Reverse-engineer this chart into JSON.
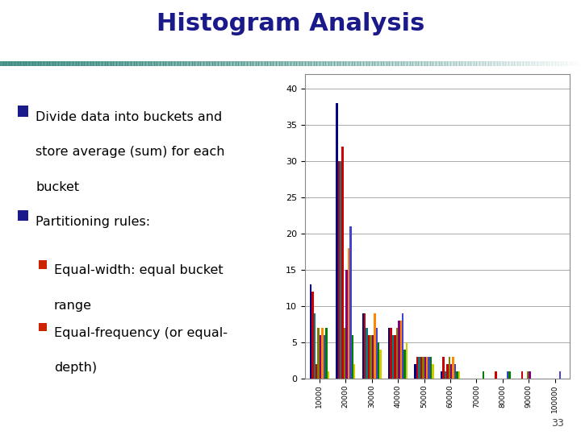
{
  "title": "Histogram Analysis",
  "title_color": "#1a1a8a",
  "title_fontsize": 22,
  "title_fontweight": "bold",
  "bg_color": "#ffffff",
  "slide_line_color": "#3a8a80",
  "text_color": "#000000",
  "bullet_color_main": "#1a1a8a",
  "bullet_color_sub": "#cc2200",
  "page_number": "33",
  "x_labels": [
    "1\n0\n0\n0\n0",
    "2\n0\n0\n0\n0",
    "3\n0\n0\n0\n0",
    "4\n0\n0\n0\n0",
    "5\n0\n0\n0\n0",
    "6\n0\n0\n0\n0",
    "7\n0\n0\n0\n0",
    "8\n0\n0\n0\n0",
    "9\n0\n0\n0\n0",
    "1\n0\n0\n0\n0\n0"
  ],
  "ylim": [
    0,
    42
  ],
  "yticks": [
    0,
    5,
    10,
    15,
    20,
    25,
    30,
    35,
    40
  ],
  "bar_colors": [
    "#000080",
    "#cc0000",
    "#008080",
    "#cc0000",
    "#808000",
    "#800080",
    "#ff8800",
    "#4444cc",
    "#008000",
    "#cccc00"
  ],
  "series_data": [
    [
      13,
      38,
      9,
      7,
      2,
      1,
      0,
      0,
      0,
      0
    ],
    [
      12,
      30,
      9,
      7,
      3,
      3,
      0,
      1,
      1,
      0
    ],
    [
      9,
      30,
      7,
      6,
      3,
      1,
      0,
      0,
      0,
      0
    ],
    [
      2,
      32,
      6,
      6,
      3,
      2,
      0,
      0,
      0,
      0
    ],
    [
      7,
      7,
      6,
      7,
      3,
      3,
      0,
      0,
      1,
      0
    ],
    [
      6,
      15,
      6,
      8,
      3,
      2,
      0,
      0,
      1,
      0
    ],
    [
      7,
      18,
      9,
      8,
      3,
      3,
      0,
      0,
      0,
      0
    ],
    [
      6,
      21,
      7,
      9,
      3,
      2,
      0,
      1,
      0,
      1
    ],
    [
      7,
      6,
      5,
      4,
      3,
      1,
      1,
      1,
      0,
      0
    ],
    [
      1,
      2,
      4,
      5,
      2,
      1,
      0,
      0,
      0,
      0
    ]
  ],
  "chart_bg": "#ffffff",
  "grid_color": "#aaaaaa",
  "text_lines": {
    "b1_line1": "Divide data into buckets and",
    "b1_line2": "store average (sum) for each",
    "b1_line3": "bucket",
    "b2": "Partitioning rules:",
    "b2a_line1": "Equal-width: equal bucket",
    "b2a_line2": "range",
    "b2b_line1": "Equal-frequency (or equal-",
    "b2b_line2": "depth)"
  }
}
